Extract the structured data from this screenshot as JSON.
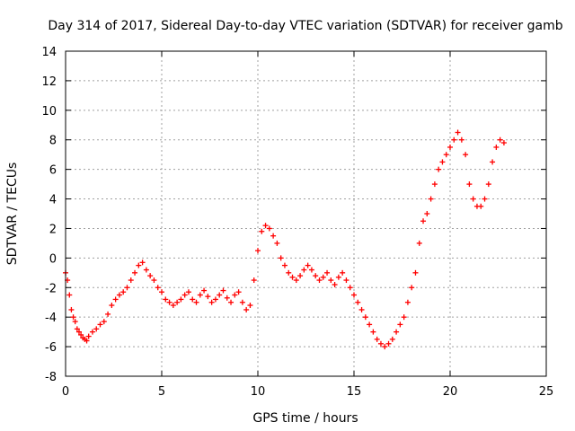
{
  "chart_data": {
    "type": "scatter",
    "title": "Day 314 of 2017, Sidereal Day-to-day VTEC variation (SDTVAR) for receiver gamb",
    "xlabel": "GPS time / hours",
    "ylabel": "SDTVAR / TECUs",
    "xlim": [
      0,
      25
    ],
    "ylim": [
      -8,
      14
    ],
    "xticks": [
      0,
      5,
      10,
      15,
      20,
      25
    ],
    "yticks": [
      -8,
      -6,
      -4,
      -2,
      0,
      2,
      4,
      6,
      8,
      10,
      12,
      14
    ],
    "grid": true,
    "marker": "+",
    "color": "#ff0000",
    "series": [
      {
        "name": "SDTVAR",
        "x": [
          0.0,
          0.1,
          0.2,
          0.3,
          0.4,
          0.5,
          0.6,
          0.7,
          0.8,
          0.9,
          1.0,
          1.1,
          1.2,
          1.4,
          1.6,
          1.8,
          2.0,
          2.2,
          2.4,
          2.6,
          2.8,
          3.0,
          3.2,
          3.4,
          3.6,
          3.8,
          4.0,
          4.2,
          4.4,
          4.6,
          4.8,
          5.0,
          5.2,
          5.4,
          5.6,
          5.8,
          6.0,
          6.2,
          6.4,
          6.6,
          6.8,
          7.0,
          7.2,
          7.4,
          7.6,
          7.8,
          8.0,
          8.2,
          8.4,
          8.6,
          8.8,
          9.0,
          9.2,
          9.4,
          9.6,
          9.8,
          10.0,
          10.2,
          10.4,
          10.6,
          10.8,
          11.0,
          11.2,
          11.4,
          11.6,
          11.8,
          12.0,
          12.2,
          12.4,
          12.6,
          12.8,
          13.0,
          13.2,
          13.4,
          13.6,
          13.8,
          14.0,
          14.2,
          14.4,
          14.6,
          14.8,
          15.0,
          15.2,
          15.4,
          15.6,
          15.8,
          16.0,
          16.2,
          16.4,
          16.6,
          16.8,
          17.0,
          17.2,
          17.4,
          17.6,
          17.8,
          18.0,
          18.2,
          18.4,
          18.6,
          18.8,
          19.0,
          19.2,
          19.4,
          19.6,
          19.8,
          20.0,
          20.2,
          20.4,
          20.6,
          20.8,
          21.0,
          21.2,
          21.4,
          21.6,
          21.8,
          22.0,
          22.2,
          22.4,
          22.6,
          22.8
        ],
        "values": [
          -1.0,
          -1.5,
          -2.5,
          -3.5,
          -4.0,
          -4.3,
          -4.8,
          -5.0,
          -5.2,
          -5.4,
          -5.5,
          -5.6,
          -5.3,
          -5.0,
          -4.8,
          -4.5,
          -4.3,
          -3.8,
          -3.2,
          -2.8,
          -2.5,
          -2.3,
          -2.0,
          -1.5,
          -1.0,
          -0.5,
          -0.3,
          -0.8,
          -1.2,
          -1.5,
          -2.0,
          -2.3,
          -2.8,
          -3.0,
          -3.2,
          -3.0,
          -2.8,
          -2.5,
          -2.3,
          -2.8,
          -3.0,
          -2.5,
          -2.2,
          -2.6,
          -3.0,
          -2.8,
          -2.5,
          -2.2,
          -2.7,
          -3.0,
          -2.5,
          -2.3,
          -3.0,
          -3.5,
          -3.2,
          -1.5,
          0.5,
          1.8,
          2.2,
          2.0,
          1.5,
          1.0,
          0.0,
          -0.5,
          -1.0,
          -1.3,
          -1.5,
          -1.2,
          -0.8,
          -0.5,
          -0.8,
          -1.2,
          -1.5,
          -1.3,
          -1.0,
          -1.5,
          -1.8,
          -1.3,
          -1.0,
          -1.5,
          -2.0,
          -2.5,
          -3.0,
          -3.5,
          -4.0,
          -4.5,
          -5.0,
          -5.5,
          -5.8,
          -6.0,
          -5.8,
          -5.5,
          -5.0,
          -4.5,
          -4.0,
          -3.0,
          -2.0,
          -1.0,
          1.0,
          2.5,
          3.0,
          4.0,
          5.0,
          6.0,
          6.5,
          7.0,
          7.5,
          8.0,
          8.5,
          8.0,
          7.0,
          5.0,
          4.0,
          3.5,
          3.5,
          4.0,
          5.0,
          6.5,
          7.5,
          8.0,
          7.8
        ]
      }
    ]
  }
}
